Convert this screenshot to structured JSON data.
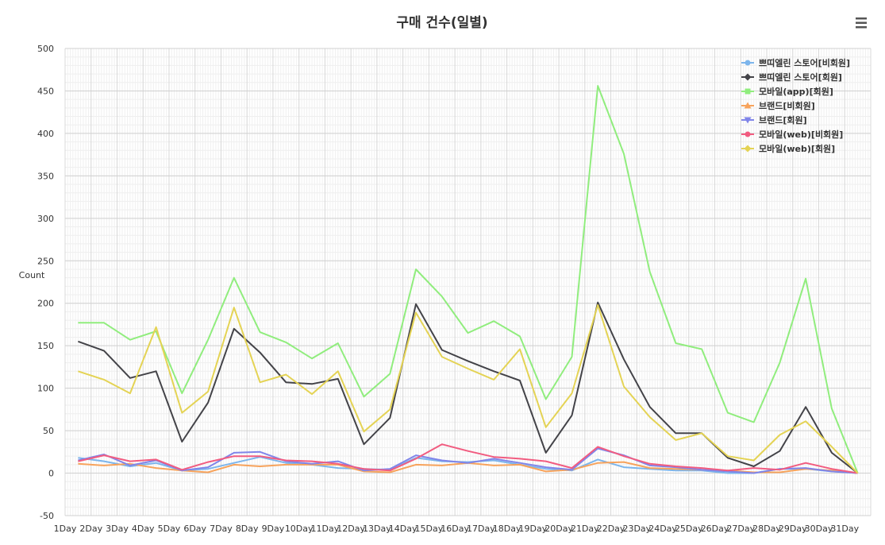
{
  "menu_icon": "hamburger-menu-icon",
  "chart_data": {
    "type": "line",
    "title": "구매 건수(일별)",
    "xlabel": "",
    "ylabel": "Count",
    "ylim": [
      -50,
      500
    ],
    "y_ticks": [
      -50,
      0,
      50,
      100,
      150,
      200,
      250,
      300,
      350,
      400,
      450,
      500
    ],
    "grid": true,
    "legend_position": "top-right",
    "categories": [
      "1Day",
      "2Day",
      "3Day",
      "4Day",
      "5Day",
      "6Day",
      "7Day",
      "8Day",
      "9Day",
      "10Day",
      "11Day",
      "12Day",
      "13Day",
      "14Day",
      "15Day",
      "16Day",
      "17Day",
      "18Day",
      "19Day",
      "20Day",
      "21Day",
      "22Day",
      "23Day",
      "24Day",
      "25Day",
      "26Day",
      "27Day",
      "28Day",
      "29Day",
      "30Day",
      "31Day"
    ],
    "series": [
      {
        "name": "쁘띠엘린 스토어[비회원]",
        "color": "#7cb5ec",
        "marker": "circle",
        "values": [
          18,
          14,
          8,
          12,
          3,
          5,
          12,
          19,
          12,
          10,
          6,
          5,
          4,
          18,
          14,
          13,
          15,
          10,
          5,
          3,
          16,
          7,
          5,
          3,
          3,
          0,
          0,
          5,
          5,
          2,
          0
        ]
      },
      {
        "name": "쁘띠엘린 스토어[회원]",
        "color": "#434348",
        "marker": "diamond",
        "values": [
          155,
          144,
          112,
          120,
          37,
          83,
          170,
          142,
          107,
          105,
          111,
          34,
          65,
          199,
          145,
          132,
          120,
          109,
          24,
          68,
          201,
          134,
          78,
          47,
          47,
          18,
          8,
          26,
          78,
          24,
          0
        ]
      },
      {
        "name": "모바일(app)[회원]",
        "color": "#90ed7d",
        "marker": "square",
        "values": [
          177,
          177,
          157,
          167,
          94,
          157,
          230,
          166,
          154,
          135,
          153,
          90,
          117,
          240,
          208,
          165,
          179,
          161,
          87,
          137,
          456,
          376,
          237,
          153,
          146,
          71,
          60,
          130,
          229,
          76,
          0
        ]
      },
      {
        "name": "브랜드[비회원]",
        "color": "#f7a35c",
        "marker": "triangle",
        "values": [
          11,
          9,
          11,
          6,
          3,
          1,
          10,
          8,
          10,
          10,
          10,
          2,
          1,
          10,
          9,
          12,
          9,
          10,
          2,
          4,
          12,
          13,
          6,
          5,
          4,
          3,
          1,
          1,
          5,
          3,
          0
        ]
      },
      {
        "name": "브랜드[회원]",
        "color": "#8085e9",
        "marker": "triangle-down",
        "values": [
          15,
          22,
          9,
          15,
          3,
          7,
          24,
          25,
          14,
          11,
          14,
          3,
          5,
          21,
          15,
          12,
          17,
          12,
          7,
          4,
          29,
          21,
          9,
          7,
          4,
          2,
          0,
          5,
          6,
          2,
          0
        ]
      },
      {
        "name": "모바일(web)[비회원]",
        "color": "#f15c80",
        "marker": "circle",
        "values": [
          14,
          21,
          14,
          16,
          4,
          13,
          20,
          20,
          15,
          14,
          11,
          5,
          3,
          17,
          34,
          26,
          19,
          17,
          14,
          6,
          31,
          20,
          11,
          8,
          6,
          3,
          6,
          4,
          12,
          5,
          0
        ]
      },
      {
        "name": "모바일(web)[회원]",
        "color": "#e4d354",
        "marker": "diamond",
        "values": [
          120,
          110,
          94,
          172,
          71,
          96,
          195,
          107,
          116,
          93,
          120,
          49,
          75,
          189,
          137,
          123,
          110,
          146,
          54,
          94,
          198,
          102,
          66,
          39,
          47,
          20,
          15,
          45,
          61,
          31,
          0
        ]
      }
    ]
  }
}
